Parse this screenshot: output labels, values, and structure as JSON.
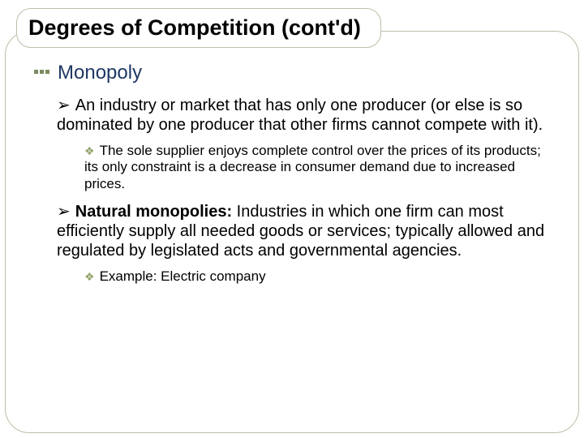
{
  "colors": {
    "frame_border": "#b8c2a8",
    "title_color": "#000000",
    "level1_color": "#1f3864",
    "bullet_dot": "#7a8a5e",
    "diamond_color": "#95a56e",
    "body_text": "#000000",
    "background": "#ffffff"
  },
  "typography": {
    "title_size": 27,
    "level1_size": 24,
    "level2_size": 20,
    "level3_size": 17,
    "font_family": "Arial"
  },
  "title": "Degrees of Competition (cont'd)",
  "level1_heading": "Monopoly",
  "bullets": {
    "def1": "An industry or market that has only one producer (or else is so dominated by one producer that other firms cannot compete with it).",
    "sub1": "The sole supplier enjoys complete control over the prices of its products; its only constraint is a decrease in consumer demand due to increased prices.",
    "def2_bold": "Natural monopolies:",
    "def2_rest": " Industries in which one firm can most efficiently supply all needed goods or services; typically allowed and regulated by legislated acts and governmental agencies.",
    "sub2": "Example: Electric company"
  },
  "glyphs": {
    "arrow": "➢",
    "diamond": "❖"
  }
}
